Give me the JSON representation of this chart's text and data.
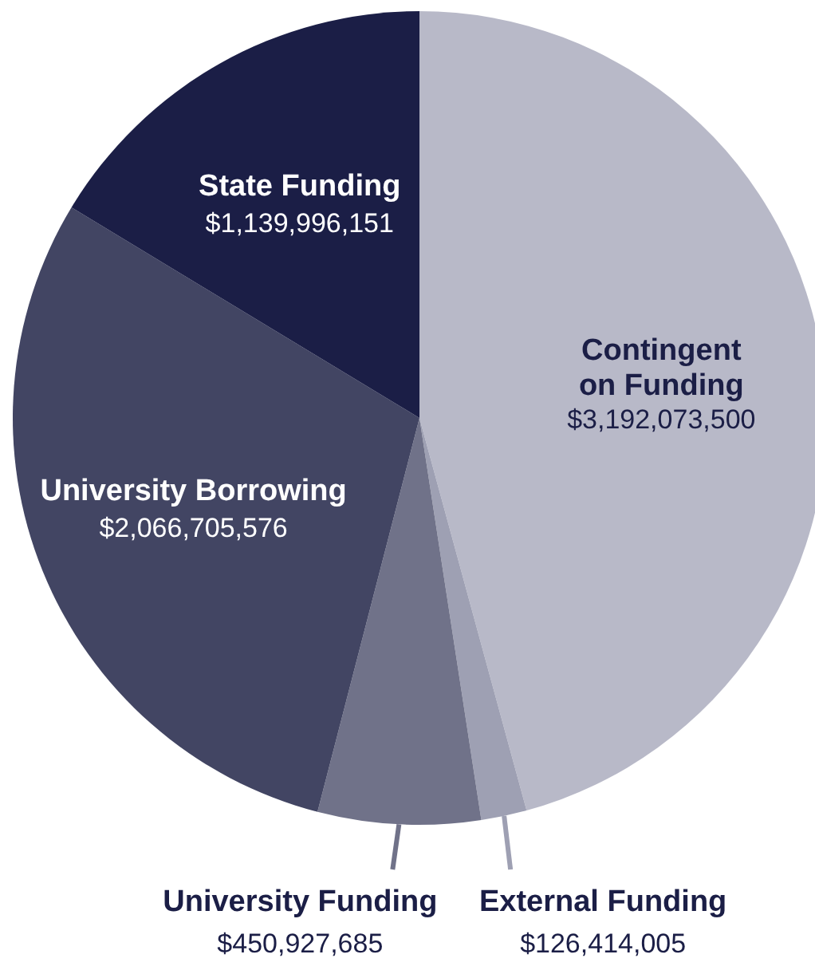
{
  "chart_data": {
    "type": "pie",
    "categories": [
      "Contingent\non Funding",
      "External Funding",
      "University Funding",
      "University Borrowing",
      "State Funding"
    ],
    "values": [
      3192073500,
      126414005,
      450927685,
      2066705576,
      1139996151
    ],
    "colors": [
      "#b8b9c8",
      "#9ea0b3",
      "#707289",
      "#424563",
      "#1b1e46"
    ],
    "value_labels": [
      "$3,192,073,500",
      "$126,414,005",
      "$450,927,685",
      "$2,066,705,576",
      "$1,139,996,151"
    ]
  }
}
